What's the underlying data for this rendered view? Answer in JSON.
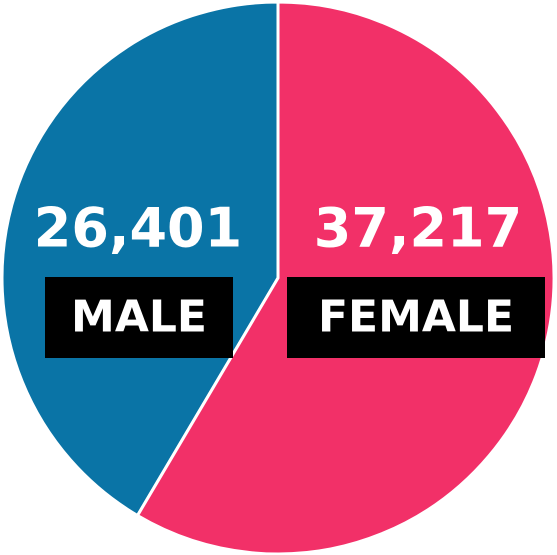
{
  "chart_data": {
    "type": "pie",
    "categories": [
      "MALE",
      "FEMALE"
    ],
    "values": [
      26401,
      37217
    ],
    "value_labels": [
      "26,401",
      "37,217"
    ],
    "colors": [
      "#0a74a6",
      "#f23068"
    ]
  }
}
